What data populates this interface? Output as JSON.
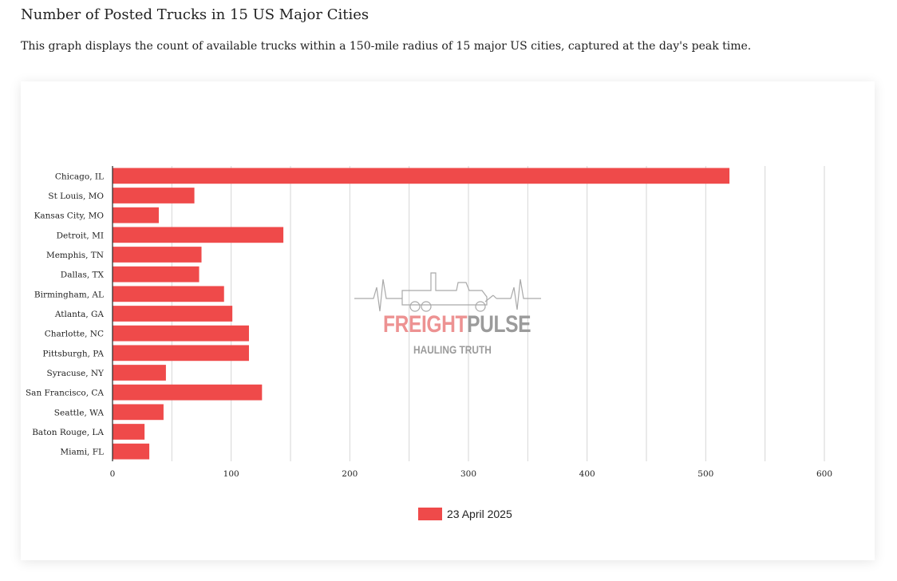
{
  "header": {
    "title": "Number of Posted Trucks in 15 US Major Cities",
    "description": "This graph displays the count of available trucks within a 150-mile radius of 15 major US cities, captured at the day's peak time."
  },
  "watermark": {
    "brand_part_1": "FREIGHT",
    "brand_part_2": "PULSE",
    "tagline": "HAULING TRUTH",
    "icon": "truck-heartbeat-icon"
  },
  "colors": {
    "bar": "#ef4a4a",
    "grid": "#d6d6d6",
    "axis": "#333333"
  },
  "chart_data": {
    "type": "bar",
    "orientation": "horizontal",
    "categories": [
      "Chicago, IL",
      "St Louis, MO",
      "Kansas City, MO",
      "Detroit, MI",
      "Memphis, TN",
      "Dallas, TX",
      "Birmingham, AL",
      "Atlanta, GA",
      "Charlotte, NC",
      "Pittsburgh, PA",
      "Syracuse, NY",
      "San Francisco, CA",
      "Seattle, WA",
      "Baton Rouge, LA",
      "Miami, FL"
    ],
    "series": [
      {
        "name": "23 April 2025",
        "values": [
          520,
          69,
          39,
          144,
          75,
          73,
          94,
          101,
          115,
          115,
          45,
          126,
          43,
          27,
          31
        ]
      }
    ],
    "xlim": [
      0,
      600
    ],
    "xticks": [
      0,
      100,
      200,
      300,
      400,
      500,
      600
    ],
    "grid": true,
    "title": "",
    "xlabel": "",
    "ylabel": "",
    "legend_position": "bottom"
  }
}
